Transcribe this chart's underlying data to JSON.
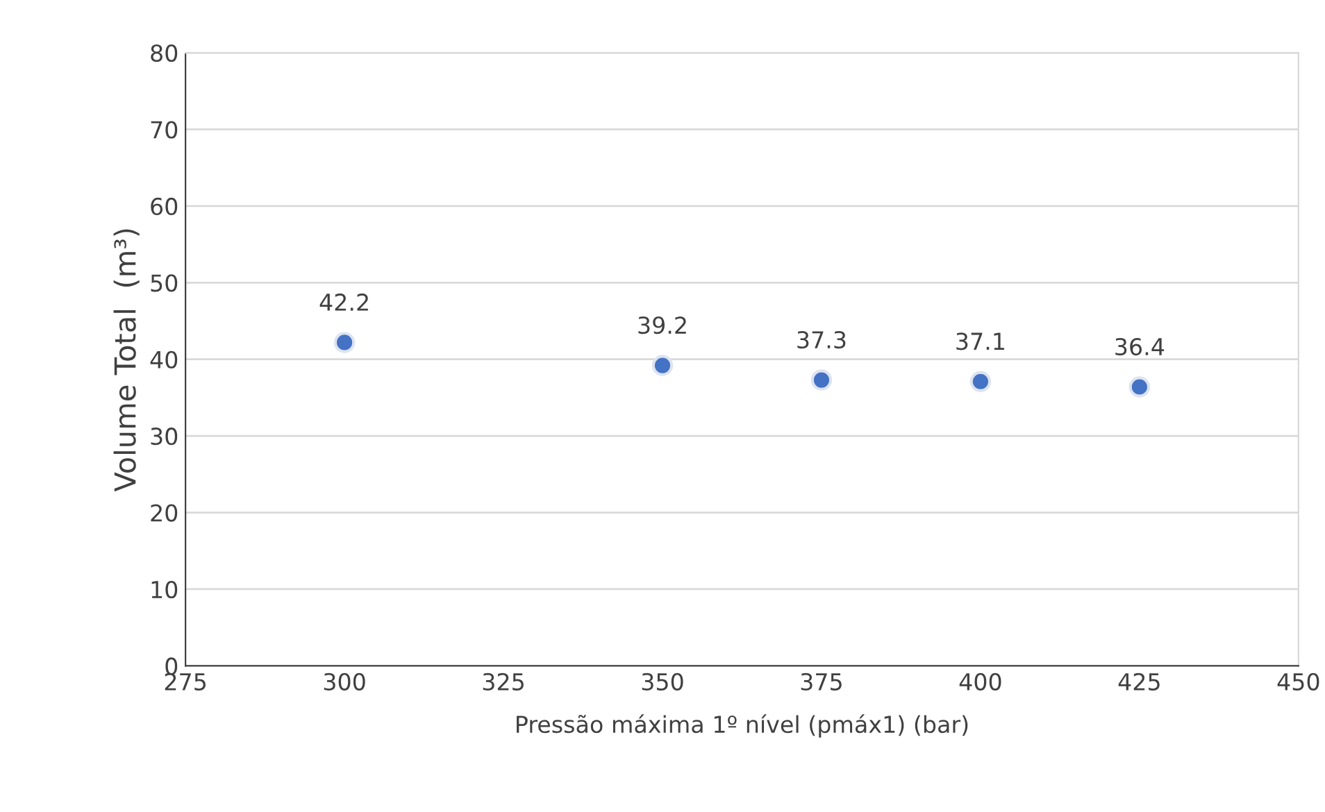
{
  "chart_data": {
    "type": "scatter",
    "xlabel": "Pressão máxima 1º nível (pmáx1) (bar)",
    "ylabel": "Volume Total  (m³)",
    "x": [
      300,
      350,
      375,
      400,
      425
    ],
    "values": [
      42.2,
      39.2,
      37.3,
      37.1,
      36.4
    ],
    "color": "#4472c4",
    "marker": "circle",
    "data_labels": true,
    "grid": "y",
    "xlim": [
      275,
      450
    ],
    "xticks": [
      275,
      300,
      325,
      350,
      375,
      400,
      425,
      450
    ],
    "ylim": [
      0,
      80
    ],
    "yticks": [
      0,
      10,
      20,
      30,
      40,
      50,
      60,
      70,
      80
    ]
  }
}
